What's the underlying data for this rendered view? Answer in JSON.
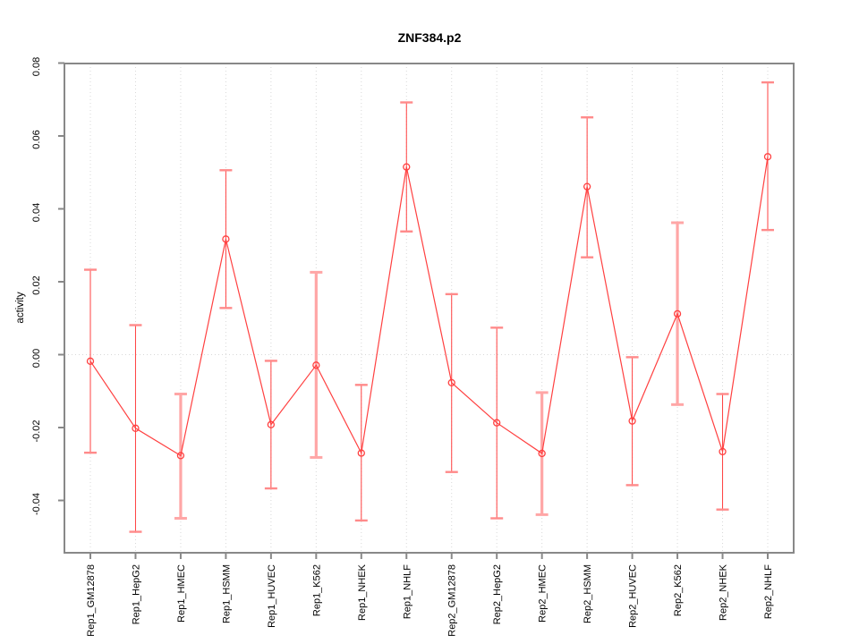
{
  "chart_data": {
    "type": "line",
    "title": "ZNF384.p2",
    "xlabel": "",
    "ylabel": "activity",
    "categories": [
      "Rep1_GM12878",
      "Rep1_HepG2",
      "Rep1_HMEC",
      "Rep1_HSMM",
      "Rep1_HUVEC",
      "Rep1_K562",
      "Rep1_NHEK",
      "Rep1_NHLF",
      "Rep2_GM12878",
      "Rep2_HepG2",
      "Rep2_HMEC",
      "Rep2_HSMM",
      "Rep2_HUVEC",
      "Rep2_K562",
      "Rep2_NHEK",
      "Rep2_NHLF"
    ],
    "series": [
      {
        "name": "activity",
        "marker": "open-circle",
        "values": [
          -0.0018,
          -0.0202,
          -0.0277,
          0.0317,
          -0.0192,
          -0.0029,
          -0.027,
          0.0515,
          -0.0077,
          -0.0187,
          -0.0271,
          0.0461,
          -0.0182,
          0.0112,
          -0.0266,
          0.0543
        ],
        "ci_low": [
          -0.0269,
          -0.0486,
          -0.0449,
          0.0128,
          -0.0367,
          -0.0282,
          -0.0455,
          0.0338,
          -0.0322,
          -0.0449,
          -0.0439,
          0.0267,
          -0.0358,
          -0.0137,
          -0.0425,
          0.0342
        ],
        "ci_high": [
          0.0233,
          0.0081,
          -0.0108,
          0.0506,
          -0.0017,
          0.0226,
          -0.0083,
          0.0692,
          0.0166,
          0.0074,
          -0.0104,
          0.0651,
          -0.0007,
          0.0362,
          -0.0108,
          0.0747
        ],
        "thick_bar": [
          false,
          false,
          true,
          false,
          false,
          true,
          false,
          false,
          false,
          false,
          true,
          false,
          false,
          true,
          false,
          false
        ]
      }
    ],
    "yticks": [
      {
        "label": "0.08",
        "value": 0.08
      },
      {
        "label": "0.06",
        "value": 0.06
      },
      {
        "label": "0.04",
        "value": 0.04
      },
      {
        "label": "0.02",
        "value": 0.02
      },
      {
        "label": "0.00",
        "value": 0.0
      },
      {
        "label": "-0.02",
        "value": -0.02
      },
      {
        "label": "-0.04",
        "value": -0.04
      }
    ],
    "ylim": [
      -0.0542,
      0.08
    ],
    "grid": {
      "vertical": "dotted at every category",
      "horizontal": "dotted at 0 only"
    },
    "legend": "none",
    "colors": {
      "series": "#ff4040",
      "cap": "#ff8a8a",
      "thick_bar": "#ffa6a6",
      "grid": "#d8d8d8",
      "axis": "#888888",
      "text": "#000000",
      "background": "#ffffff"
    }
  }
}
